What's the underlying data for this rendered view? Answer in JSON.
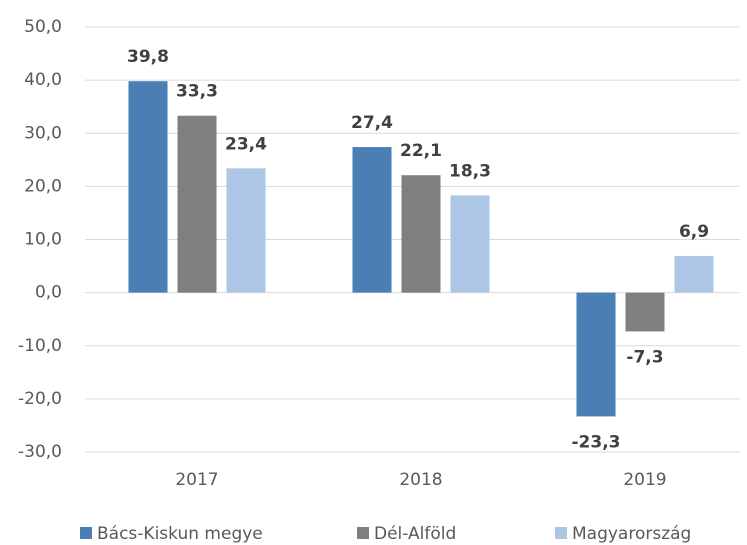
{
  "chart_data": {
    "type": "bar",
    "categories": [
      "2017",
      "2018",
      "2019"
    ],
    "series": [
      {
        "name": "Bács-Kiskun megye",
        "color": "#4a7eb4",
        "values": [
          39.8,
          27.4,
          -23.3
        ],
        "value_labels": [
          "39,8",
          "27,4",
          "-23,3"
        ]
      },
      {
        "name": "Dél-Alföld",
        "color": "#7f7f7f",
        "values": [
          33.3,
          22.1,
          -7.3
        ],
        "value_labels": [
          "33,3",
          "22,1",
          "-7,3"
        ]
      },
      {
        "name": "Magyarország",
        "color": "#aec6e6",
        "values": [
          23.4,
          18.3,
          6.9
        ],
        "value_labels": [
          "23,4",
          "18,3",
          "6,9"
        ]
      }
    ],
    "ylim": [
      -30,
      50
    ],
    "yticks": [
      {
        "value": -30,
        "label": "-30,0"
      },
      {
        "value": -20,
        "label": "-20,0"
      },
      {
        "value": -10,
        "label": "-10,0"
      },
      {
        "value": 0,
        "label": "0,0"
      },
      {
        "value": 10,
        "label": "10,0"
      },
      {
        "value": 20,
        "label": "20,0"
      },
      {
        "value": 30,
        "label": "30,0"
      },
      {
        "value": 40,
        "label": "40,0"
      },
      {
        "value": 50,
        "label": "50,0"
      }
    ],
    "grid": true,
    "legend": "bottom"
  }
}
